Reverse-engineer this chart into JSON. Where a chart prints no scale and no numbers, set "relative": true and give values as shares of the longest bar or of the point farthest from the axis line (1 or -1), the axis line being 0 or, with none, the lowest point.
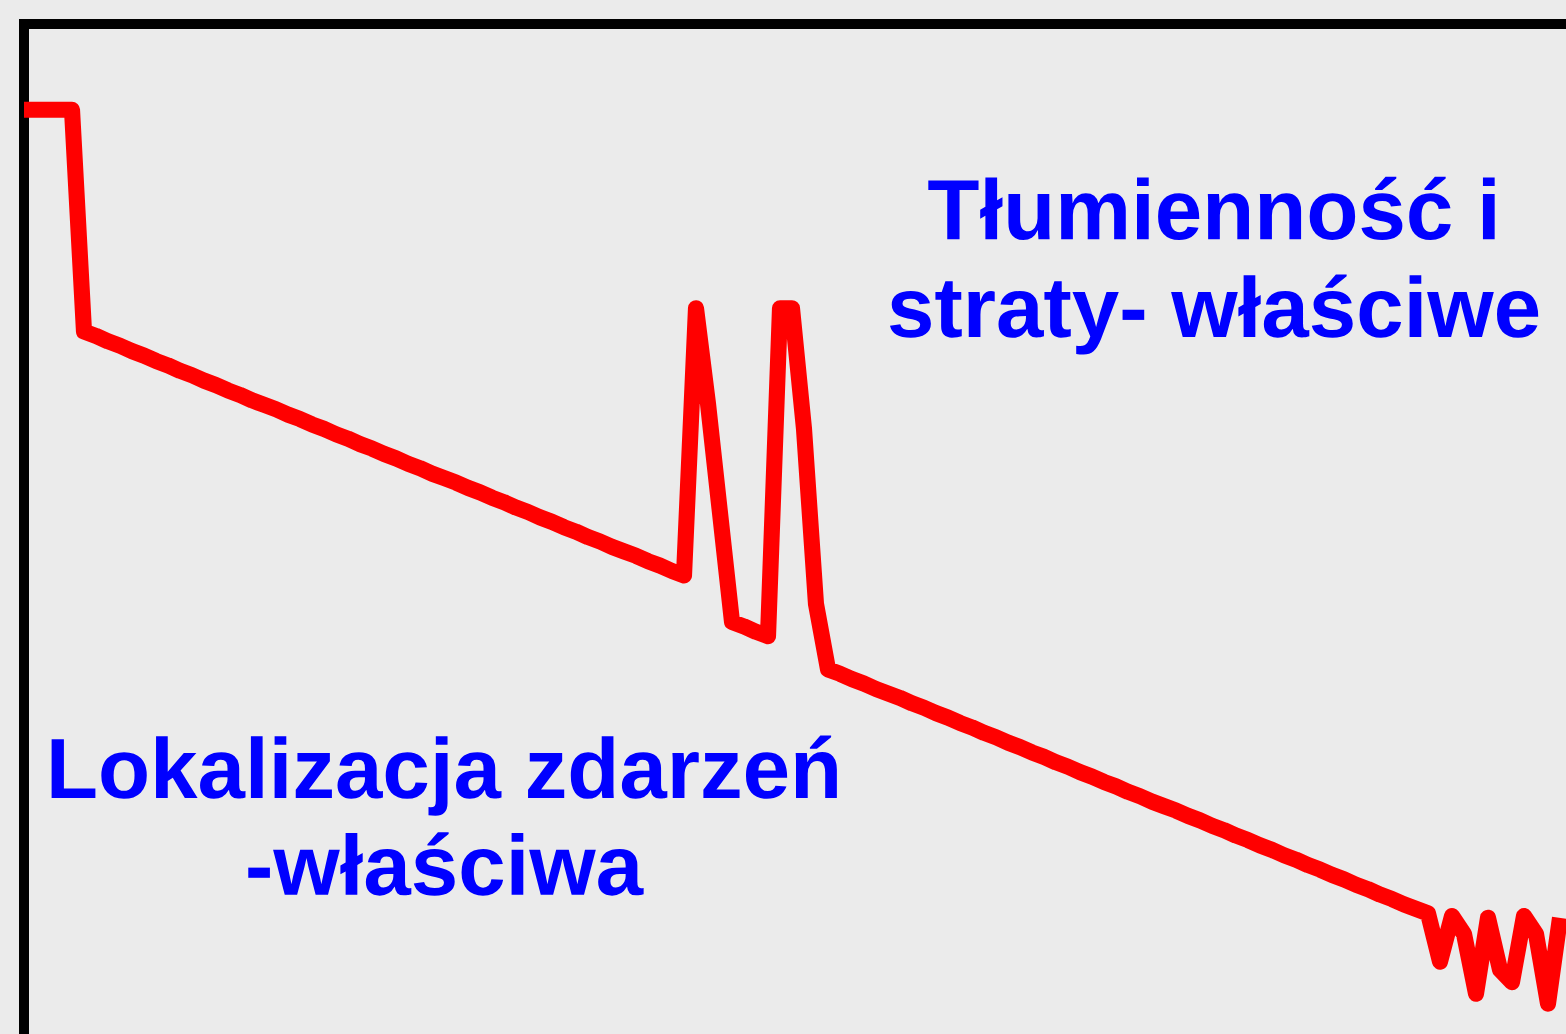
{
  "chart_data": {
    "type": "line",
    "relative": true,
    "tick_labels": false,
    "line_style": "solid",
    "categories": [
      null,
      null,
      null,
      null,
      null,
      null,
      null,
      null,
      null,
      null,
      null,
      null,
      null,
      null,
      null,
      null,
      null,
      null,
      null,
      null,
      null,
      null,
      null,
      null,
      null,
      null,
      null,
      null,
      null,
      null,
      null,
      null,
      null,
      null,
      null,
      null,
      null,
      null,
      null,
      null,
      null,
      null,
      null,
      null,
      null,
      null,
      null,
      null,
      null,
      null,
      null,
      null,
      null,
      null,
      null,
      null,
      null,
      null,
      null,
      null,
      null,
      null,
      null,
      null,
      null,
      null,
      null,
      null,
      null,
      null,
      null,
      null,
      null,
      null,
      null,
      null,
      null,
      null,
      null,
      null,
      null,
      null,
      null,
      null,
      null,
      null,
      null,
      null,
      null,
      null,
      null,
      null,
      null,
      null,
      null,
      null,
      null,
      null,
      null,
      null,
      null,
      null,
      null,
      null,
      null,
      null,
      null,
      null,
      null,
      null,
      null,
      null,
      null,
      null,
      null,
      null,
      null,
      null,
      null,
      null,
      null,
      null,
      null,
      null,
      null,
      null,
      null,
      null,
      null
    ],
    "series": [
      {
        "color": "#ff0000",
        "values": [
          1,
          1,
          1,
          1,
          1,
          0.752,
          0.747,
          0.741,
          0.736,
          0.73,
          0.725,
          0.719,
          0.714,
          0.708,
          0.703,
          0.697,
          0.692,
          0.686,
          0.681,
          0.675,
          0.67,
          0.665,
          0.659,
          0.654,
          0.648,
          0.643,
          0.637,
          0.632,
          0.626,
          0.621,
          0.615,
          0.61,
          0.604,
          0.599,
          0.593,
          0.588,
          0.583,
          0.577,
          0.572,
          0.566,
          0.561,
          0.555,
          0.55,
          0.544,
          0.539,
          0.533,
          0.528,
          0.522,
          0.517,
          0.511,
          0.506,
          0.501,
          0.495,
          0.49,
          0.484,
          0.479,
          0.778,
          0.671,
          0.549,
          0.427,
          0.422,
          0.416,
          0.411,
          0.778,
          0.778,
          0.643,
          0.447,
          0.374,
          0.369,
          0.363,
          0.358,
          0.352,
          0.347,
          0.342,
          0.336,
          0.331,
          0.325,
          0.32,
          0.314,
          0.309,
          0.303,
          0.298,
          0.292,
          0.287,
          0.281,
          0.276,
          0.27,
          0.265,
          0.259,
          0.254,
          0.248,
          0.243,
          0.237,
          0.232,
          0.226,
          0.221,
          0.216,
          0.21,
          0.205,
          0.199,
          0.194,
          0.188,
          0.183,
          0.177,
          0.172,
          0.166,
          0.161,
          0.155,
          0.15,
          0.144,
          0.139,
          0.133,
          0.128,
          0.122,
          0.117,
          0.111,
          0.106,
          0.101,
          0.047,
          0.098,
          0.078,
          0.011,
          0.096,
          0.038,
          0.024,
          0.098,
          0.078,
          0,
          0.096
        ]
      }
    ],
    "annotations": [
      "Tłumienność i\nstraty- właściwe",
      "Lokalizacja zdarzeń\n-właściwa"
    ]
  }
}
